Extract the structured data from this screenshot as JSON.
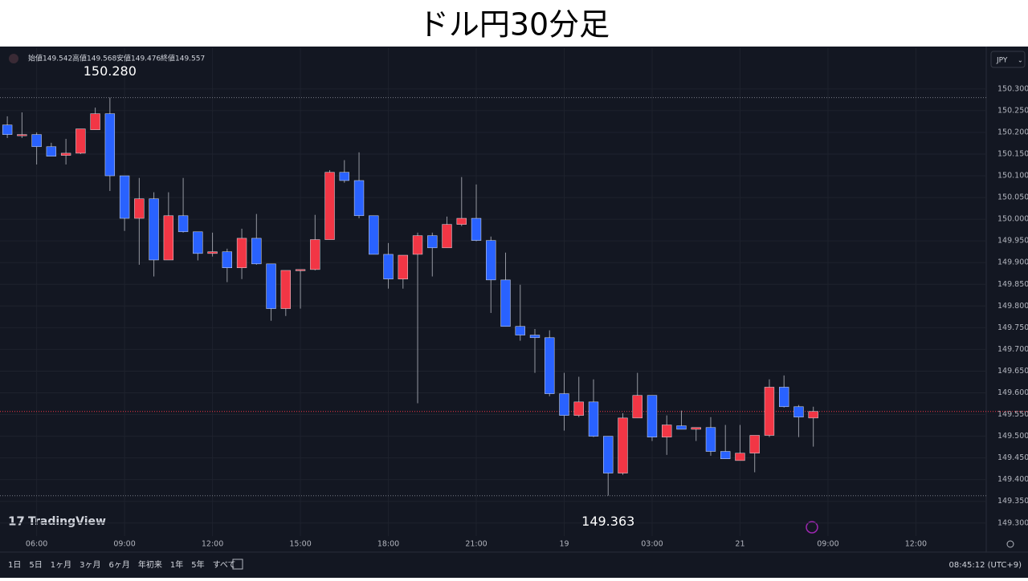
{
  "chart_data": {
    "type": "candlestick",
    "title": "ドル円30分足",
    "header": [
      "始値149.542",
      "高値149.568",
      "安値149.476",
      "終値149.557"
    ],
    "currency": "JPY",
    "brand": "TradingView",
    "up_color": "#f23645",
    "down_color": "#2962ff",
    "ohlc": {
      "open": [
        150.217,
        150.195,
        150.195,
        150.167,
        150.147,
        150.152,
        150.206,
        150.243,
        150.1,
        150.002,
        150.047,
        149.906,
        150.008,
        149.971,
        149.921,
        149.925,
        149.888,
        149.956,
        149.897,
        149.794,
        149.882,
        149.884,
        149.953,
        150.108,
        150.089,
        150.008,
        149.919,
        149.862,
        149.919,
        149.962,
        149.934,
        149.988,
        150.002,
        149.951,
        149.86,
        149.753,
        149.733,
        149.727,
        149.598,
        149.548,
        149.579,
        149.5,
        149.415,
        149.542,
        149.594,
        149.498,
        149.524,
        149.516,
        149.52,
        149.465,
        149.444,
        149.461,
        149.502,
        149.613,
        149.568,
        149.542
      ],
      "high": [
        150.237,
        150.246,
        150.2,
        150.176,
        150.185,
        150.208,
        150.257,
        150.28,
        150.1,
        150.095,
        150.062,
        150.062,
        150.095,
        149.971,
        149.969,
        149.932,
        149.978,
        150.012,
        149.897,
        149.882,
        149.884,
        150.01,
        150.113,
        150.136,
        150.154,
        150.008,
        149.945,
        149.917,
        149.969,
        149.969,
        150.006,
        150.097,
        150.08,
        149.96,
        149.923,
        149.849,
        149.747,
        149.744,
        149.646,
        149.637,
        149.631,
        149.5,
        149.553,
        149.646,
        149.594,
        149.548,
        149.559,
        149.52,
        149.544,
        149.526,
        149.526,
        149.502,
        149.631,
        149.64,
        149.572,
        149.568
      ],
      "low": [
        150.187,
        150.187,
        150.126,
        150.145,
        150.126,
        150.15,
        150.206,
        150.065,
        149.973,
        149.895,
        149.868,
        149.906,
        149.969,
        149.905,
        149.914,
        149.855,
        149.862,
        149.895,
        149.766,
        149.777,
        149.794,
        149.882,
        149.953,
        150.084,
        150.002,
        149.919,
        149.84,
        149.84,
        149.576,
        149.868,
        149.934,
        149.984,
        149.949,
        149.784,
        149.753,
        149.72,
        149.646,
        149.592,
        149.513,
        149.544,
        149.498,
        149.363,
        149.411,
        149.542,
        149.489,
        149.457,
        149.516,
        149.489,
        149.455,
        149.448,
        149.444,
        149.417,
        149.498,
        149.566,
        149.498,
        149.476
      ],
      "close": [
        150.195,
        150.195,
        150.167,
        150.145,
        150.152,
        150.208,
        150.243,
        150.1,
        150.002,
        150.047,
        149.906,
        150.008,
        149.971,
        149.921,
        149.925,
        149.888,
        149.956,
        149.897,
        149.794,
        149.882,
        149.884,
        149.953,
        150.108,
        150.089,
        150.008,
        149.919,
        149.862,
        149.917,
        149.962,
        149.934,
        149.988,
        150.002,
        149.951,
        149.86,
        149.753,
        149.733,
        149.727,
        149.598,
        149.548,
        149.579,
        149.5,
        149.415,
        149.542,
        149.594,
        149.498,
        149.526,
        149.516,
        149.52,
        149.465,
        149.448,
        149.461,
        149.502,
        149.613,
        149.568,
        149.544,
        149.557
      ]
    },
    "annotations": [
      {
        "value": 150.28,
        "label": "150.280",
        "index": 7
      },
      {
        "value": 149.363,
        "label": "149.363",
        "index": 41
      }
    ],
    "last_price": 149.557,
    "xlim": [
      -0.5,
      66.8
    ],
    "xticks": [
      {
        "value": 2,
        "label": "06:00"
      },
      {
        "value": 8,
        "label": "09:00"
      },
      {
        "value": 14,
        "label": "12:00"
      },
      {
        "value": 20,
        "label": "15:00"
      },
      {
        "value": 26,
        "label": "18:00"
      },
      {
        "value": 32,
        "label": "21:00"
      },
      {
        "value": 38,
        "label": "19"
      },
      {
        "value": 44,
        "label": "03:00"
      },
      {
        "value": 50,
        "label": "21"
      },
      {
        "value": 56,
        "label": "09:00"
      },
      {
        "value": 62,
        "label": "12:00"
      }
    ],
    "ylim": [
      149.27,
      150.394
    ],
    "yticks": [
      {
        "value": 150.3,
        "label": "150.300"
      },
      {
        "value": 150.25,
        "label": "150.250"
      },
      {
        "value": 150.2,
        "label": "150.200"
      },
      {
        "value": 150.15,
        "label": "150.150"
      },
      {
        "value": 150.1,
        "label": "150.100"
      },
      {
        "value": 150.05,
        "label": "150.050"
      },
      {
        "value": 150,
        "label": "150.000"
      },
      {
        "value": 149.95,
        "label": "149.950"
      },
      {
        "value": 149.9,
        "label": "149.900"
      },
      {
        "value": 149.85,
        "label": "149.850"
      },
      {
        "value": 149.8,
        "label": "149.800"
      },
      {
        "value": 149.75,
        "label": "149.750"
      },
      {
        "value": 149.7,
        "label": "149.700"
      },
      {
        "value": 149.65,
        "label": "149.650"
      },
      {
        "value": 149.6,
        "label": "149.600"
      },
      {
        "value": 149.55,
        "label": "149.550"
      },
      {
        "value": 149.5,
        "label": "149.500"
      },
      {
        "value": 149.45,
        "label": "149.450"
      },
      {
        "value": 149.4,
        "label": "149.400"
      },
      {
        "value": 149.35,
        "label": "149.350"
      },
      {
        "value": 149.3,
        "label": "149.300"
      }
    ],
    "grid": true,
    "toolbar": [
      "1日",
      "5日",
      "1ヶ月",
      "3ヶ月",
      "6ヶ月",
      "年初来",
      "1年",
      "5年",
      "すべて"
    ],
    "clock": "08:45:12 (UTC+9)"
  }
}
